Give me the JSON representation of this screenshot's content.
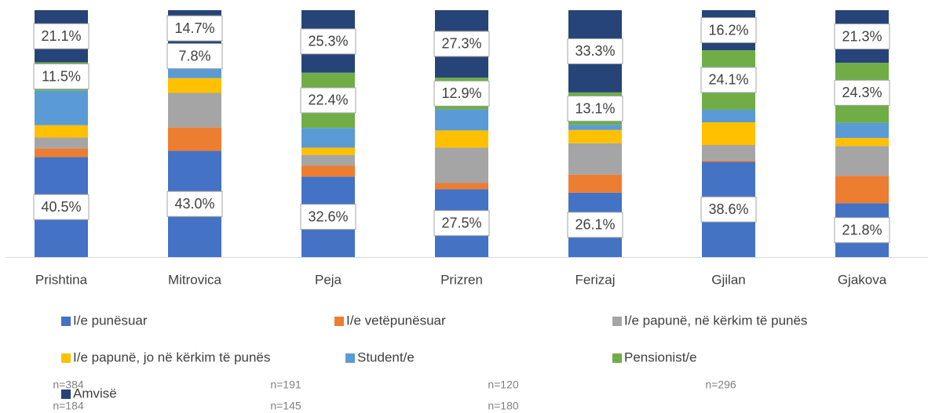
{
  "chart_data": {
    "type": "stacked_bar",
    "categories": [
      "Prishtina",
      "Mitrovica",
      "Peja",
      "Prizren",
      "Ferizaj",
      "Gjilan",
      "Gjakova"
    ],
    "ylim": [
      0,
      100
    ],
    "series": [
      {
        "name": "I/e punësuar",
        "color": "#4472c4",
        "values": [
          40.5,
          43.0,
          32.6,
          27.5,
          26.1,
          38.6,
          21.8
        ],
        "value_labels": [
          "40.5%",
          "43.0%",
          "32.6%",
          "27.5%",
          "26.1%",
          "38.6%",
          "21.8%"
        ]
      },
      {
        "name": "I/e vetëpunësuar",
        "color": "#ed7d31",
        "values": [
          3.5,
          9.5,
          4.4,
          2.5,
          7.3,
          0.5,
          11.1
        ]
      },
      {
        "name": "I/e papunë, në kërkim të punës",
        "color": "#a5a5a5",
        "values": [
          4.4,
          14.0,
          4.4,
          14.3,
          12.7,
          6.3,
          12.1
        ]
      },
      {
        "name": "I/e papunë, jo në kërkim të punës",
        "color": "#ffc000",
        "values": [
          5.0,
          6.0,
          2.9,
          7.0,
          5.4,
          9.2,
          3.2
        ]
      },
      {
        "name": "Student/e",
        "color": "#5b9bd5",
        "values": [
          14.0,
          5.0,
          8.0,
          8.5,
          2.1,
          5.1,
          6.2
        ]
      },
      {
        "name": "Pensionist/e",
        "color": "#70ad47",
        "values": [
          11.5,
          7.8,
          22.4,
          12.9,
          13.1,
          24.1,
          24.3
        ],
        "value_labels": [
          "11.5%",
          "7.8%",
          "22.4%",
          "12.9%",
          "13.1%",
          "24.1%",
          "24.3%"
        ]
      },
      {
        "name": "Amvisë",
        "color": "#264478",
        "values": [
          21.1,
          14.7,
          25.3,
          27.3,
          33.3,
          16.2,
          21.3
        ],
        "value_labels": [
          "21.1%",
          "14.7%",
          "25.3%",
          "27.3%",
          "33.3%",
          "16.2%",
          "21.3%"
        ]
      }
    ],
    "notes": [
      "n=384",
      "n=191",
      "n=120",
      "n=296",
      "n=184",
      "n=145",
      "n=180"
    ]
  }
}
